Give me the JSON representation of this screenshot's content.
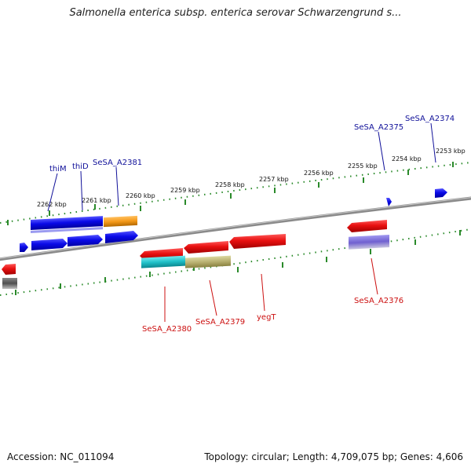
{
  "title": "Salmonella enterica subsp. enterica serovar Schwarzengrund s...",
  "footer": {
    "accession": "Accession: NC_011094",
    "summary": "Topology: circular; Length: 4,709,075 bp; Genes: 4,606"
  },
  "colors": {
    "forward_gene": "#1010e0",
    "reverse_gene": "#e01010",
    "forward_label": "#101099",
    "reverse_label": "#cc1010",
    "backbone": "#8a8a8a",
    "ticks": "#2a8a2a",
    "orange": "#f59a1a",
    "cyan": "#20c0c8",
    "olive": "#b8b070",
    "purple": "#8070d0",
    "gray": "#555555"
  },
  "kbp_labels": [
    "2262 kbp",
    "2261 kbp",
    "2260 kbp",
    "2259 kbp",
    "2258 kbp",
    "2257 kbp",
    "2256 kbp",
    "2255 kbp",
    "2254 kbp",
    "2253 kbp"
  ],
  "forward_gene_labels": [
    "thiM",
    "thiD",
    "SeSA_A2381",
    "SeSA_A2375",
    "SeSA_A2374"
  ],
  "reverse_gene_labels": [
    "SeSA_A2380",
    "SeSA_A2379",
    "yegT",
    "SeSA_A2376"
  ]
}
